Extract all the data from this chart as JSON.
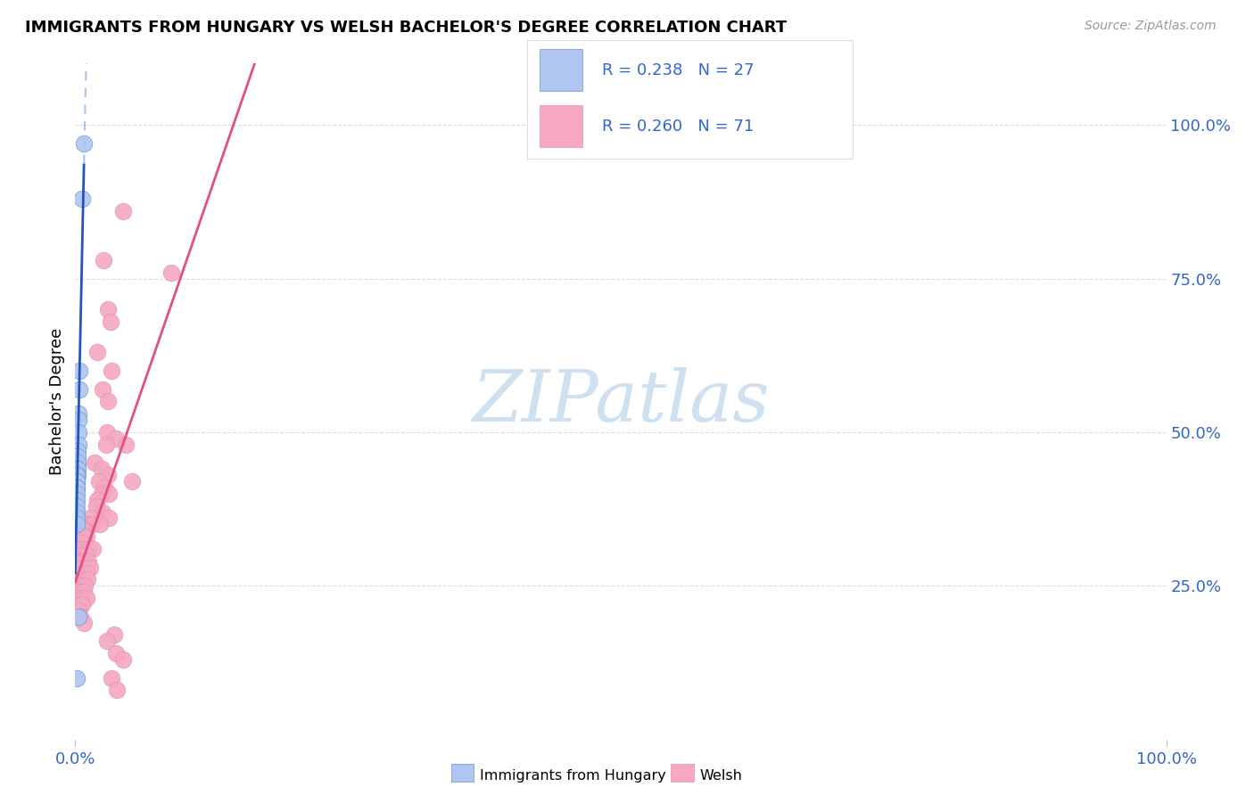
{
  "title": "IMMIGRANTS FROM HUNGARY VS WELSH BACHELOR'S DEGREE CORRELATION CHART",
  "source": "Source: ZipAtlas.com",
  "ylabel": "Bachelor's Degree",
  "ytick_labels": [
    "25.0%",
    "50.0%",
    "75.0%",
    "100.0%"
  ],
  "ytick_positions": [
    0.25,
    0.5,
    0.75,
    1.0
  ],
  "legend_blue_R": "0.238",
  "legend_blue_N": "27",
  "legend_pink_R": "0.260",
  "legend_pink_N": "71",
  "legend_label_blue": "Immigrants from Hungary",
  "legend_label_pink": "Welsh",
  "blue_color": "#aec6f0",
  "blue_edge_color": "#7090d0",
  "pink_color": "#f5a8c0",
  "pink_edge_color": "#e090b8",
  "blue_line_color": "#2255bb",
  "blue_dash_color": "#aac4e8",
  "pink_line_color": "#e05080",
  "watermark_text": "ZIPatlas",
  "watermark_color": "#cfe0f0",
  "background_color": "#ffffff",
  "grid_color": "#dddddd",
  "blue_scatter": [
    [
      0.008,
      0.97
    ],
    [
      0.006,
      0.88
    ],
    [
      0.004,
      0.6
    ],
    [
      0.004,
      0.57
    ],
    [
      0.003,
      0.53
    ],
    [
      0.003,
      0.52
    ],
    [
      0.003,
      0.5
    ],
    [
      0.003,
      0.48
    ],
    [
      0.002,
      0.47
    ],
    [
      0.002,
      0.46
    ],
    [
      0.002,
      0.45
    ],
    [
      0.002,
      0.44
    ],
    [
      0.002,
      0.44
    ],
    [
      0.002,
      0.43
    ],
    [
      0.001,
      0.43
    ],
    [
      0.001,
      0.42
    ],
    [
      0.001,
      0.42
    ],
    [
      0.001,
      0.41
    ],
    [
      0.001,
      0.41
    ],
    [
      0.001,
      0.4
    ],
    [
      0.001,
      0.39
    ],
    [
      0.001,
      0.38
    ],
    [
      0.001,
      0.37
    ],
    [
      0.001,
      0.36
    ],
    [
      0.001,
      0.35
    ],
    [
      0.003,
      0.2
    ],
    [
      0.001,
      0.1
    ]
  ],
  "pink_scatter": [
    [
      0.044,
      0.86
    ],
    [
      0.026,
      0.78
    ],
    [
      0.03,
      0.7
    ],
    [
      0.032,
      0.68
    ],
    [
      0.02,
      0.63
    ],
    [
      0.033,
      0.6
    ],
    [
      0.025,
      0.57
    ],
    [
      0.03,
      0.55
    ],
    [
      0.029,
      0.5
    ],
    [
      0.037,
      0.49
    ],
    [
      0.028,
      0.48
    ],
    [
      0.046,
      0.48
    ],
    [
      0.018,
      0.45
    ],
    [
      0.024,
      0.44
    ],
    [
      0.03,
      0.43
    ],
    [
      0.022,
      0.42
    ],
    [
      0.027,
      0.41
    ],
    [
      0.024,
      0.4
    ],
    [
      0.031,
      0.4
    ],
    [
      0.02,
      0.39
    ],
    [
      0.019,
      0.38
    ],
    [
      0.025,
      0.37
    ],
    [
      0.031,
      0.36
    ],
    [
      0.014,
      0.36
    ],
    [
      0.012,
      0.35
    ],
    [
      0.016,
      0.35
    ],
    [
      0.023,
      0.35
    ],
    [
      0.009,
      0.34
    ],
    [
      0.008,
      0.34
    ],
    [
      0.005,
      0.33
    ],
    [
      0.01,
      0.33
    ],
    [
      0.008,
      0.33
    ],
    [
      0.006,
      0.32
    ],
    [
      0.004,
      0.31
    ],
    [
      0.007,
      0.31
    ],
    [
      0.012,
      0.31
    ],
    [
      0.016,
      0.31
    ],
    [
      0.005,
      0.3
    ],
    [
      0.007,
      0.3
    ],
    [
      0.01,
      0.3
    ],
    [
      0.003,
      0.29
    ],
    [
      0.006,
      0.29
    ],
    [
      0.009,
      0.29
    ],
    [
      0.012,
      0.29
    ],
    [
      0.004,
      0.28
    ],
    [
      0.008,
      0.28
    ],
    [
      0.014,
      0.28
    ],
    [
      0.006,
      0.27
    ],
    [
      0.01,
      0.27
    ],
    [
      0.004,
      0.26
    ],
    [
      0.007,
      0.26
    ],
    [
      0.011,
      0.26
    ],
    [
      0.006,
      0.25
    ],
    [
      0.009,
      0.25
    ],
    [
      0.005,
      0.24
    ],
    [
      0.008,
      0.24
    ],
    [
      0.005,
      0.23
    ],
    [
      0.007,
      0.23
    ],
    [
      0.01,
      0.23
    ],
    [
      0.006,
      0.22
    ],
    [
      0.003,
      0.21
    ],
    [
      0.005,
      0.2
    ],
    [
      0.008,
      0.19
    ],
    [
      0.036,
      0.17
    ],
    [
      0.029,
      0.16
    ],
    [
      0.037,
      0.14
    ],
    [
      0.044,
      0.13
    ],
    [
      0.033,
      0.1
    ],
    [
      0.038,
      0.08
    ],
    [
      0.052,
      0.42
    ],
    [
      0.088,
      0.76
    ]
  ],
  "xlim": [
    0.0,
    1.0
  ],
  "ylim": [
    0.0,
    1.1
  ],
  "xdata_max": 0.1
}
